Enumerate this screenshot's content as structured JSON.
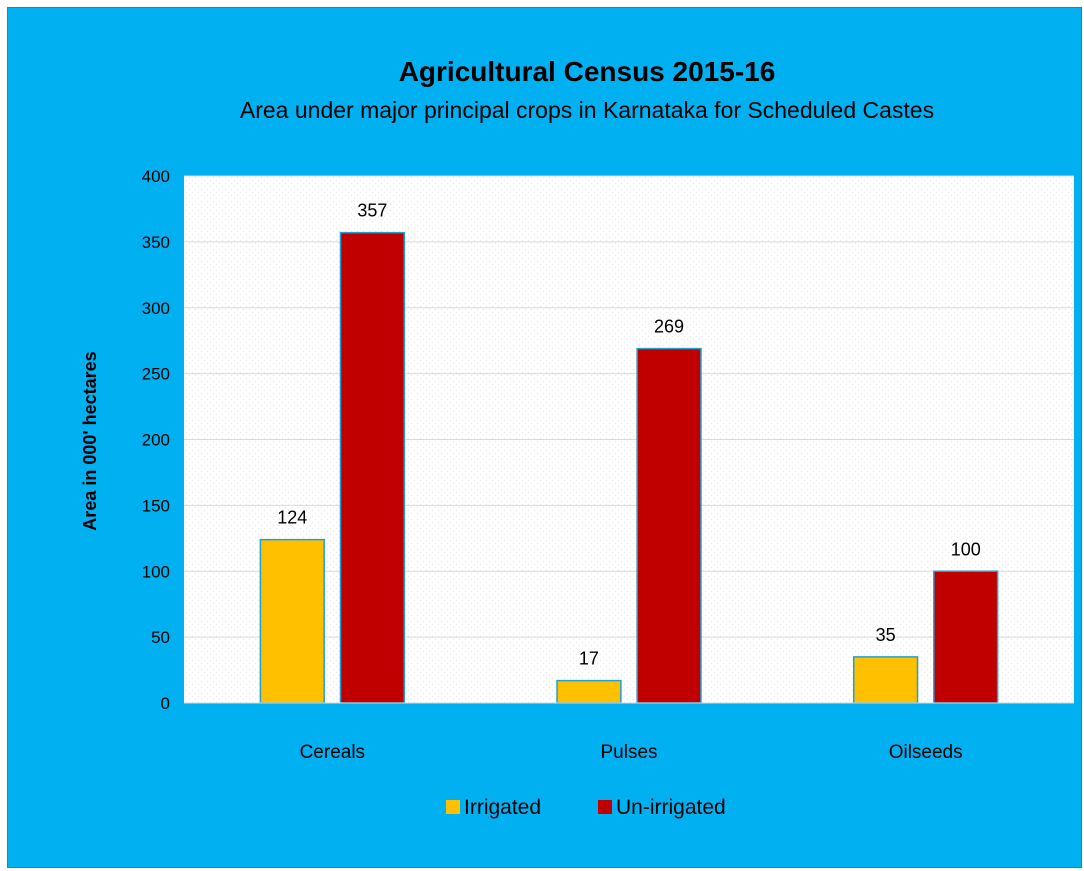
{
  "chart_data": {
    "type": "bar",
    "title": "Agricultural Census 2015-16",
    "subtitle": "Area under major principal crops in Karnataka for Scheduled Castes",
    "xlabel": "",
    "ylabel": "Area in 000' hectares",
    "categories": [
      "Cereals",
      "Pulses",
      "Oilseeds"
    ],
    "series": [
      {
        "name": "Irrigated",
        "values": [
          124,
          17,
          35
        ],
        "color": "#ffc000"
      },
      {
        "name": "Un-irrigated",
        "values": [
          357,
          269,
          100
        ],
        "color": "#c00000"
      }
    ],
    "ylim": [
      0,
      400
    ],
    "yticks": [
      "0",
      "50",
      "100",
      "150",
      "200",
      "250",
      "300",
      "350",
      "400"
    ],
    "grid": true,
    "legend_position": "bottom",
    "data_labels": true
  },
  "colors": {
    "background": "#00b0f0",
    "plot_area": "#ffffff",
    "gridline": "#d9d9d9",
    "bar_outline": "#1fa0d0"
  }
}
